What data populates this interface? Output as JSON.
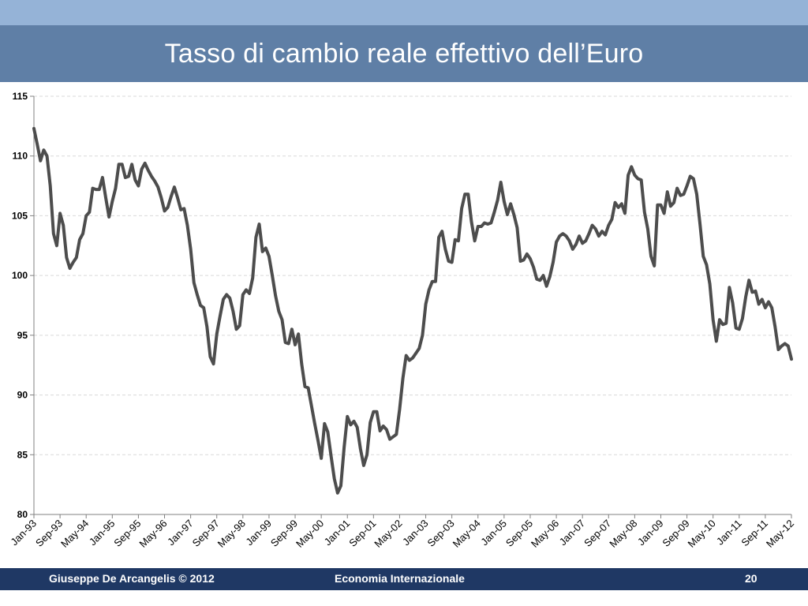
{
  "slide": {
    "title": "Tasso di cambio reale effettivo dell’Euro",
    "footer_left": "Giuseppe De  Arcangelis © 2012",
    "footer_center": "Economia Internazionale",
    "page_number": "20"
  },
  "colors": {
    "top_band": "#95b3d7",
    "title_bar": "#5f7fa6",
    "footer": "#1f3864",
    "line": "#4d4d4d",
    "grid": "#d9d9d9"
  },
  "chart_data": {
    "type": "line",
    "title": "",
    "xlabel": "",
    "ylabel": "",
    "ylim": [
      80,
      115
    ],
    "yticks": [
      80,
      85,
      90,
      95,
      100,
      105,
      110,
      115
    ],
    "grid": true,
    "legend": "none",
    "x_tick_labels": [
      "Jan-93",
      "Sep-93",
      "May-94",
      "Jan-95",
      "Sep-95",
      "May-96",
      "Jan-97",
      "Sep-97",
      "May-98",
      "Jan-99",
      "Sep-99",
      "May-00",
      "Jan-01",
      "Sep-01",
      "May-02",
      "Jan-03",
      "Sep-03",
      "May-04",
      "Jan-05",
      "Sep-05",
      "May-06",
      "Jan-07",
      "Sep-07",
      "May-08",
      "Jan-09",
      "Sep-09",
      "May-10",
      "Jan-11",
      "Sep-11",
      "May-12"
    ],
    "x_start": "Jan-93",
    "x_end": "May-12",
    "series": [
      {
        "values": [
          112.3,
          111.0,
          109.6,
          110.5,
          110.0,
          107.5,
          103.5,
          102.5,
          105.2,
          104.2,
          101.5,
          100.6,
          101.1,
          101.5,
          103.0,
          103.5,
          105.0,
          105.3,
          107.3,
          107.2,
          107.2,
          108.2,
          106.5,
          104.9,
          106.2,
          107.3,
          109.3,
          109.3,
          108.2,
          108.3,
          109.3,
          108.0,
          107.5,
          108.9,
          109.4,
          108.8,
          108.3,
          107.9,
          107.4,
          106.5,
          105.4,
          105.7,
          106.6,
          107.4,
          106.5,
          105.5,
          105.6,
          104.2,
          102.2,
          99.4,
          98.4,
          97.5,
          97.3,
          95.7,
          93.2,
          92.6,
          95.1,
          96.6,
          98.0,
          98.4,
          98.1,
          97.0,
          95.5,
          95.8,
          98.4,
          98.8,
          98.5,
          99.8,
          103.2,
          104.3,
          102.0,
          102.3,
          101.6,
          100.0,
          98.3,
          97.0,
          96.3,
          94.4,
          94.3,
          95.5,
          94.2,
          95.1,
          92.6,
          90.7,
          90.6,
          89.1,
          87.6,
          86.2,
          84.7,
          87.6,
          86.9,
          84.9,
          83.0,
          81.8,
          82.4,
          85.6,
          88.2,
          87.5,
          87.8,
          87.3,
          85.5,
          84.1,
          85.0,
          87.7,
          88.6,
          88.6,
          87.0,
          87.4,
          87.1,
          86.3,
          86.5,
          86.7,
          88.8,
          91.4,
          93.3,
          92.9,
          93.1,
          93.5,
          93.9,
          95.0,
          97.6,
          98.8,
          99.5,
          99.5,
          103.2,
          103.7,
          102.2,
          101.2,
          101.1,
          103.0,
          102.9,
          105.6,
          106.8,
          106.8,
          104.5,
          102.9,
          104.1,
          104.1,
          104.4,
          104.3,
          104.4,
          105.3,
          106.3,
          107.8,
          106.2,
          105.1,
          106.0,
          105.1,
          104.0,
          101.2,
          101.3,
          101.8,
          101.4,
          100.7,
          99.7,
          99.6,
          100.0,
          99.1,
          99.9,
          101.1,
          102.8,
          103.3,
          103.5,
          103.3,
          102.9,
          102.2,
          102.6,
          103.3,
          102.7,
          102.9,
          103.5,
          104.2,
          103.9,
          103.3,
          103.7,
          103.4,
          104.2,
          104.7,
          106.1,
          105.7,
          106.0,
          105.2,
          108.4,
          109.1,
          108.4,
          108.1,
          108.0,
          105.3,
          103.9,
          101.6,
          100.8,
          105.9,
          105.9,
          105.2,
          107.0,
          105.8,
          106.1,
          107.3,
          106.7,
          106.8,
          107.5,
          108.3,
          108.1,
          106.8,
          104.3,
          101.6,
          100.9,
          99.3,
          96.3,
          94.5,
          96.3,
          95.9,
          96.0,
          99.0,
          97.7,
          95.6,
          95.5,
          96.4,
          98.2,
          99.6,
          98.6,
          98.7,
          97.6,
          98.0,
          97.3,
          97.8,
          97.3,
          95.7,
          93.8,
          94.1,
          94.3,
          94.1,
          93.0
        ]
      }
    ]
  }
}
